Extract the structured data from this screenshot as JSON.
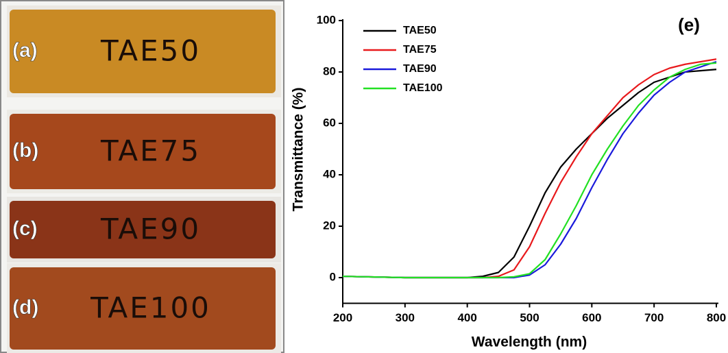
{
  "chart_data": {
    "type": "line",
    "title": "(e)",
    "x_label": "Wavelength (nm)",
    "y_label": "Transmittance (%)",
    "x": [
      200,
      300,
      400,
      425,
      450,
      475,
      500,
      525,
      550,
      575,
      600,
      625,
      650,
      675,
      700,
      725,
      750,
      775,
      800
    ],
    "series": [
      {
        "name": "TAE50",
        "color": "#000000",
        "values": [
          0.5,
          0,
          0,
          0.5,
          2,
          8,
          20,
          33,
          43,
          50,
          56,
          62,
          67,
          72,
          76,
          78,
          80,
          80.5,
          81
        ]
      },
      {
        "name": "TAE75",
        "color": "#e8191c",
        "values": [
          0.5,
          0,
          0,
          0,
          0.5,
          3,
          12,
          25,
          37,
          47,
          56,
          63,
          70,
          75,
          79,
          81.5,
          83,
          84,
          85
        ]
      },
      {
        "name": "TAE90",
        "color": "#1a1adb",
        "values": [
          0.5,
          0,
          0,
          0,
          0,
          0,
          1,
          5,
          13,
          23,
          35,
          46,
          56,
          64,
          71,
          76,
          80,
          82,
          84
        ]
      },
      {
        "name": "TAE100",
        "color": "#22e022",
        "values": [
          0.5,
          0,
          0,
          0,
          0,
          0.3,
          1.5,
          7,
          17,
          28,
          40,
          50,
          59,
          67,
          73,
          78,
          81,
          83,
          83.5
        ]
      }
    ],
    "xlim": [
      200,
      800
    ],
    "ylim": [
      -10,
      100
    ],
    "xticks": [
      200,
      300,
      400,
      500,
      600,
      700,
      800
    ],
    "yticks": [
      0,
      20,
      40,
      60,
      80,
      100
    ],
    "legend": "upper left"
  },
  "photos": [
    {
      "label": "(a)",
      "text": "TAE50"
    },
    {
      "label": "(b)",
      "text": "TAE75"
    },
    {
      "label": "(c)",
      "text": "TAE90"
    },
    {
      "label": "(d)",
      "text": "TAE100"
    }
  ]
}
